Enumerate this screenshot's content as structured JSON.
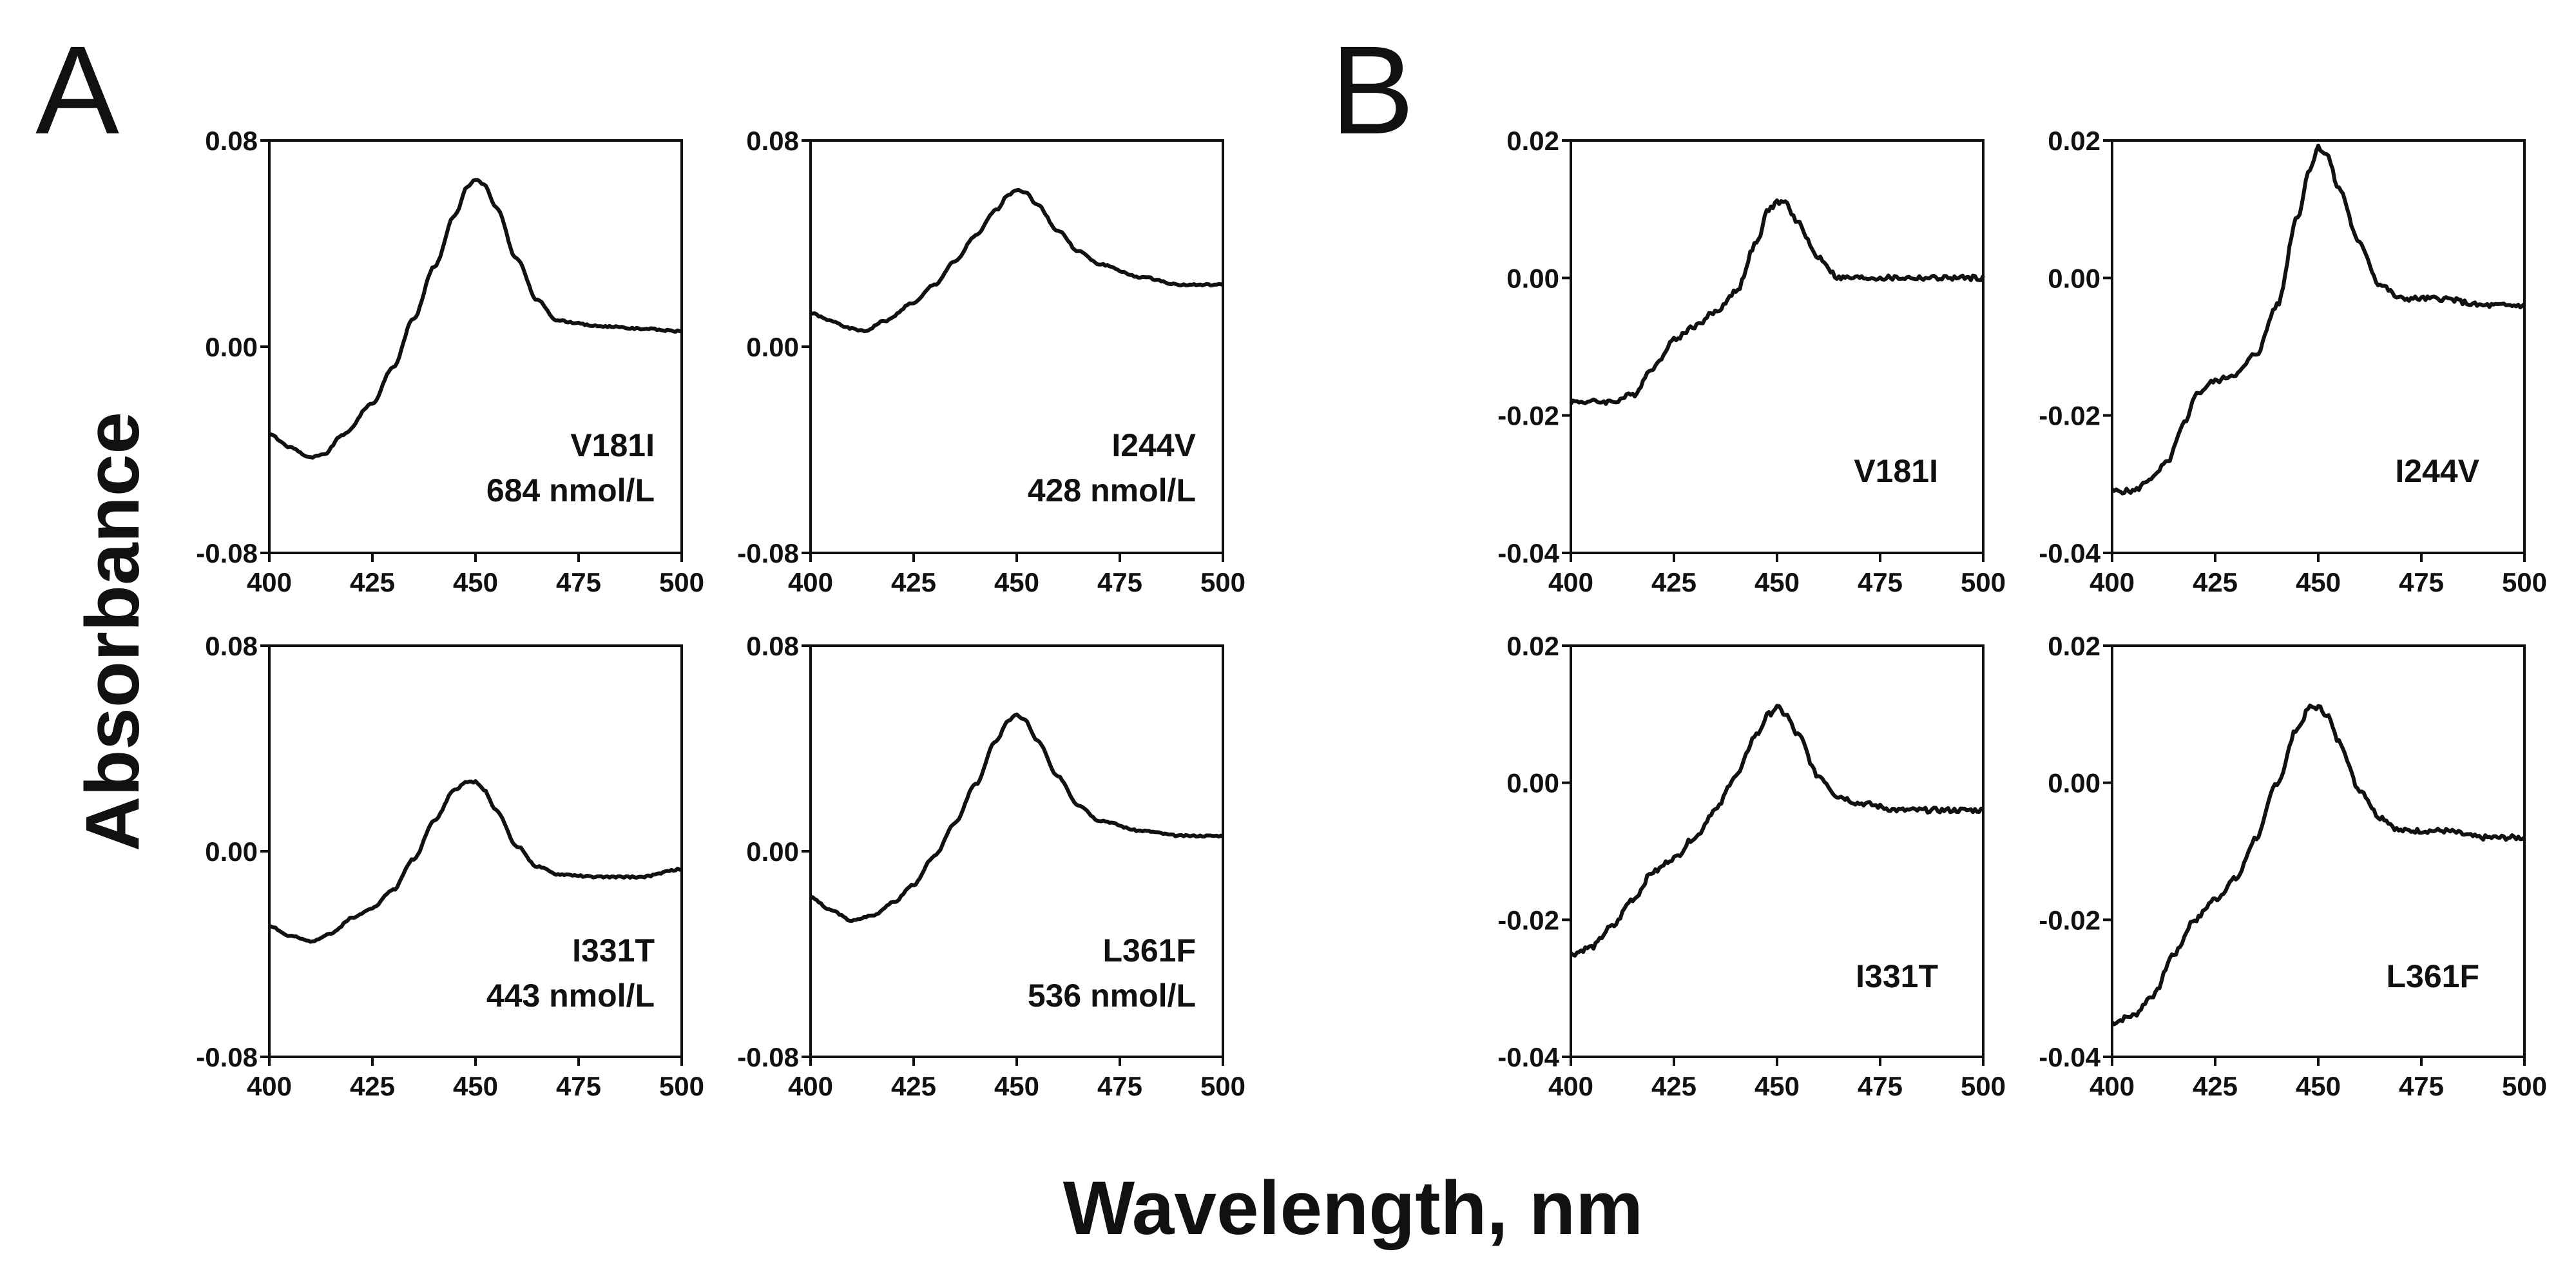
{
  "figure": {
    "panel_letters": [
      "A",
      "B"
    ],
    "ylabel": "Absorbance",
    "xlabel": "Wavelength, nm"
  },
  "chart_data": [
    {
      "type": "line",
      "panel": "A",
      "label": "V181I",
      "concentration": "684 nmol/L",
      "xlim": [
        400,
        500
      ],
      "ylim": [
        -0.08,
        0.08
      ],
      "xticks": [
        "400",
        "425",
        "450",
        "475",
        "500"
      ],
      "yticks": [
        "-0.08",
        "0.00",
        "0.08"
      ],
      "x": [
        400,
        405,
        410,
        413,
        418,
        425,
        430,
        435,
        440,
        445,
        448,
        450,
        452,
        455,
        460,
        465,
        470,
        480,
        490,
        500
      ],
      "y": [
        -0.034,
        -0.039,
        -0.043,
        -0.042,
        -0.034,
        -0.022,
        -0.008,
        0.011,
        0.031,
        0.051,
        0.062,
        0.065,
        0.063,
        0.054,
        0.034,
        0.018,
        0.01,
        0.008,
        0.007,
        0.006
      ]
    },
    {
      "type": "line",
      "panel": "A",
      "label": "I244V",
      "concentration": "428 nmol/L",
      "xlim": [
        400,
        500
      ],
      "ylim": [
        -0.08,
        0.08
      ],
      "xticks": [
        "400",
        "425",
        "450",
        "475",
        "500"
      ],
      "yticks": [
        "-0.08",
        "0.00",
        "0.08"
      ],
      "x": [
        400,
        405,
        410,
        413,
        418,
        425,
        430,
        435,
        440,
        445,
        448,
        450,
        452,
        455,
        460,
        465,
        470,
        480,
        490,
        500
      ],
      "y": [
        0.013,
        0.01,
        0.007,
        0.006,
        0.01,
        0.017,
        0.024,
        0.033,
        0.043,
        0.053,
        0.059,
        0.061,
        0.06,
        0.055,
        0.045,
        0.037,
        0.032,
        0.027,
        0.024,
        0.024
      ]
    },
    {
      "type": "line",
      "panel": "A",
      "label": "I331T",
      "concentration": "443 nmol/L",
      "xlim": [
        400,
        500
      ],
      "ylim": [
        -0.08,
        0.08
      ],
      "xticks": [
        "400",
        "425",
        "450",
        "475",
        "500"
      ],
      "yticks": [
        "-0.08",
        "0.00",
        "0.08"
      ],
      "x": [
        400,
        405,
        410,
        415,
        420,
        425,
        430,
        435,
        440,
        445,
        448,
        450,
        452,
        455,
        460,
        465,
        470,
        480,
        490,
        500
      ],
      "y": [
        -0.029,
        -0.033,
        -0.035,
        -0.032,
        -0.026,
        -0.022,
        -0.015,
        -0.003,
        0.012,
        0.024,
        0.027,
        0.027,
        0.024,
        0.016,
        0.002,
        -0.006,
        -0.009,
        -0.01,
        -0.01,
        -0.007
      ]
    },
    {
      "type": "line",
      "panel": "A",
      "label": "L361F",
      "concentration": "536 nmol/L",
      "xlim": [
        400,
        500
      ],
      "ylim": [
        -0.08,
        0.08
      ],
      "xticks": [
        "400",
        "425",
        "450",
        "475",
        "500"
      ],
      "yticks": [
        "-0.08",
        "0.00",
        "0.08"
      ],
      "x": [
        400,
        405,
        410,
        415,
        420,
        425,
        430,
        435,
        440,
        445,
        448,
        450,
        452,
        455,
        460,
        465,
        470,
        480,
        490,
        500
      ],
      "y": [
        -0.018,
        -0.023,
        -0.027,
        -0.025,
        -0.02,
        -0.013,
        -0.002,
        0.011,
        0.026,
        0.043,
        0.051,
        0.053,
        0.051,
        0.043,
        0.029,
        0.018,
        0.012,
        0.008,
        0.006,
        0.006
      ]
    },
    {
      "type": "line",
      "panel": "B",
      "label": "V181I",
      "xlim": [
        400,
        500
      ],
      "ylim": [
        -0.04,
        0.02
      ],
      "xticks": [
        "400",
        "425",
        "450",
        "475",
        "500"
      ],
      "yticks": [
        "-0.04",
        "-0.02",
        "0.00",
        "0.02"
      ],
      "x": [
        400,
        405,
        410,
        415,
        420,
        425,
        430,
        435,
        440,
        445,
        448,
        450,
        452,
        455,
        460,
        465,
        470,
        480,
        490,
        500
      ],
      "y": [
        -0.018,
        -0.018,
        -0.018,
        -0.017,
        -0.013,
        -0.009,
        -0.007,
        -0.005,
        -0.002,
        0.005,
        0.01,
        0.011,
        0.011,
        0.008,
        0.003,
        0.0,
        0.0,
        0.0,
        0.0,
        0.0
      ]
    },
    {
      "type": "line",
      "panel": "B",
      "label": "I244V",
      "xlim": [
        400,
        500
      ],
      "ylim": [
        -0.04,
        0.02
      ],
      "xticks": [
        "400",
        "425",
        "450",
        "475",
        "500"
      ],
      "yticks": [
        "-0.04",
        "-0.02",
        "0.00",
        "0.02"
      ],
      "x": [
        400,
        405,
        410,
        413,
        418,
        420,
        425,
        430,
        435,
        440,
        445,
        448,
        450,
        452,
        455,
        460,
        465,
        470,
        480,
        490,
        500
      ],
      "y": [
        -0.031,
        -0.031,
        -0.029,
        -0.027,
        -0.021,
        -0.017,
        -0.015,
        -0.014,
        -0.011,
        -0.004,
        0.009,
        0.016,
        0.019,
        0.018,
        0.013,
        0.005,
        -0.001,
        -0.003,
        -0.003,
        -0.004,
        -0.004
      ]
    },
    {
      "type": "line",
      "panel": "B",
      "label": "I331T",
      "xlim": [
        400,
        500
      ],
      "ylim": [
        -0.04,
        0.02
      ],
      "xticks": [
        "400",
        "425",
        "450",
        "475",
        "500"
      ],
      "yticks": [
        "-0.04",
        "-0.02",
        "0.00",
        "0.02"
      ],
      "x": [
        400,
        405,
        410,
        415,
        420,
        425,
        430,
        435,
        440,
        445,
        448,
        450,
        452,
        455,
        460,
        465,
        470,
        480,
        490,
        500
      ],
      "y": [
        -0.025,
        -0.024,
        -0.021,
        -0.017,
        -0.013,
        -0.011,
        -0.008,
        -0.004,
        0.001,
        0.007,
        0.01,
        0.011,
        0.01,
        0.007,
        0.001,
        -0.002,
        -0.003,
        -0.004,
        -0.004,
        -0.004
      ]
    },
    {
      "type": "line",
      "panel": "B",
      "label": "L361F",
      "xlim": [
        400,
        500
      ],
      "ylim": [
        -0.04,
        0.02
      ],
      "xticks": [
        "400",
        "425",
        "450",
        "475",
        "500"
      ],
      "yticks": [
        "-0.04",
        "-0.02",
        "0.00",
        "0.02"
      ],
      "x": [
        400,
        405,
        410,
        415,
        420,
        425,
        430,
        435,
        440,
        445,
        448,
        450,
        452,
        455,
        460,
        465,
        470,
        480,
        490,
        500
      ],
      "y": [
        -0.035,
        -0.034,
        -0.031,
        -0.025,
        -0.02,
        -0.017,
        -0.014,
        -0.008,
        0.0,
        0.008,
        0.011,
        0.011,
        0.01,
        0.006,
        -0.001,
        -0.005,
        -0.007,
        -0.007,
        -0.008,
        -0.008
      ]
    }
  ]
}
